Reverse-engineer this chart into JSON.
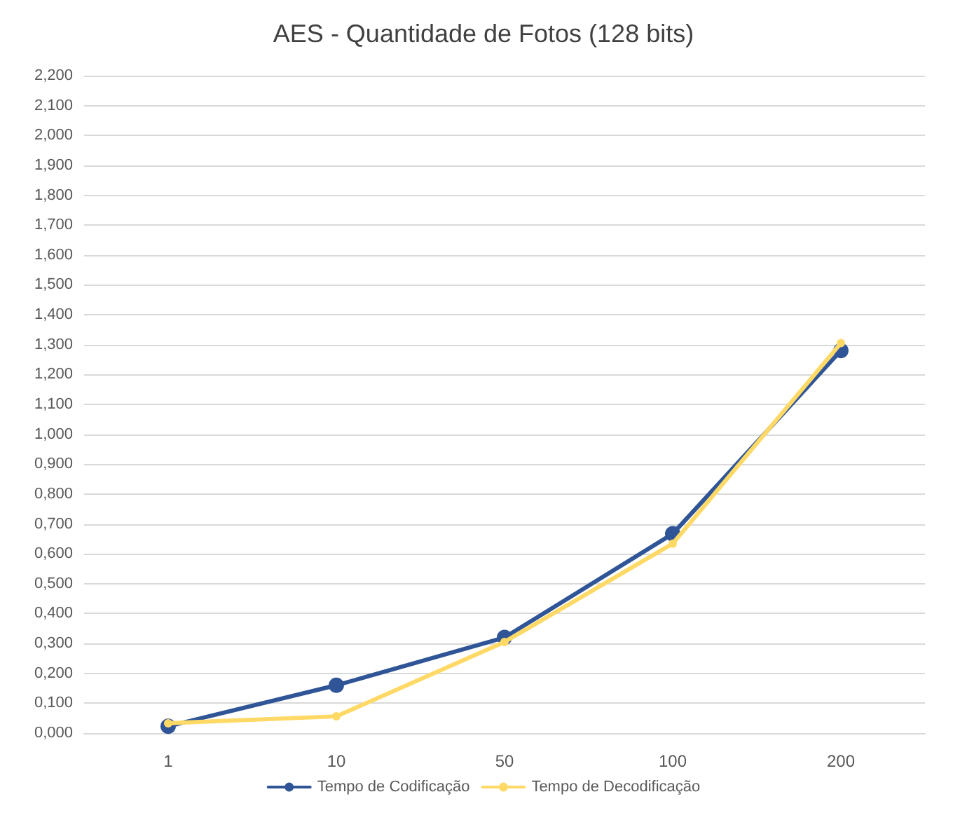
{
  "chart_data": {
    "type": "line",
    "title": "AES - Quantidade de Fotos (128 bits)",
    "categories": [
      "1",
      "10",
      "50",
      "100",
      "200"
    ],
    "series": [
      {
        "name": "Tempo de Codificação",
        "color": "#2f5597",
        "values": [
          0.023,
          0.16,
          0.32,
          0.667,
          1.28
        ]
      },
      {
        "name": "Tempo de Decodificação",
        "color": "#ffd966",
        "values": [
          0.033,
          0.056,
          0.305,
          0.634,
          1.305
        ]
      }
    ],
    "ylim": [
      0,
      2.2
    ],
    "yticks": [
      {
        "value": 0,
        "label": "0,000"
      },
      {
        "value": 0.1,
        "label": "0,100"
      },
      {
        "value": 0.2,
        "label": "0,200"
      },
      {
        "value": 0.3,
        "label": "0,300"
      },
      {
        "value": 0.4,
        "label": "0,400"
      },
      {
        "value": 0.5,
        "label": "0,500"
      },
      {
        "value": 0.6,
        "label": "0,600"
      },
      {
        "value": 0.7,
        "label": "0,700"
      },
      {
        "value": 0.8,
        "label": "0,800"
      },
      {
        "value": 0.9,
        "label": "0,900"
      },
      {
        "value": 1.0,
        "label": "1,000"
      },
      {
        "value": 1.1,
        "label": "1,100"
      },
      {
        "value": 1.2,
        "label": "1,200"
      },
      {
        "value": 1.3,
        "label": "1,300"
      },
      {
        "value": 1.4,
        "label": "1,400"
      },
      {
        "value": 1.5,
        "label": "1,500"
      },
      {
        "value": 1.6,
        "label": "1,600"
      },
      {
        "value": 1.7,
        "label": "1,700"
      },
      {
        "value": 1.8,
        "label": "1,800"
      },
      {
        "value": 1.9,
        "label": "1,900"
      },
      {
        "value": 2.0,
        "label": "2,000"
      },
      {
        "value": 2.1,
        "label": "2,100"
      },
      {
        "value": 2.2,
        "label": "2,200"
      }
    ],
    "grid": "y",
    "legend": "bottom",
    "marker": "circle",
    "line_style": "solid"
  }
}
